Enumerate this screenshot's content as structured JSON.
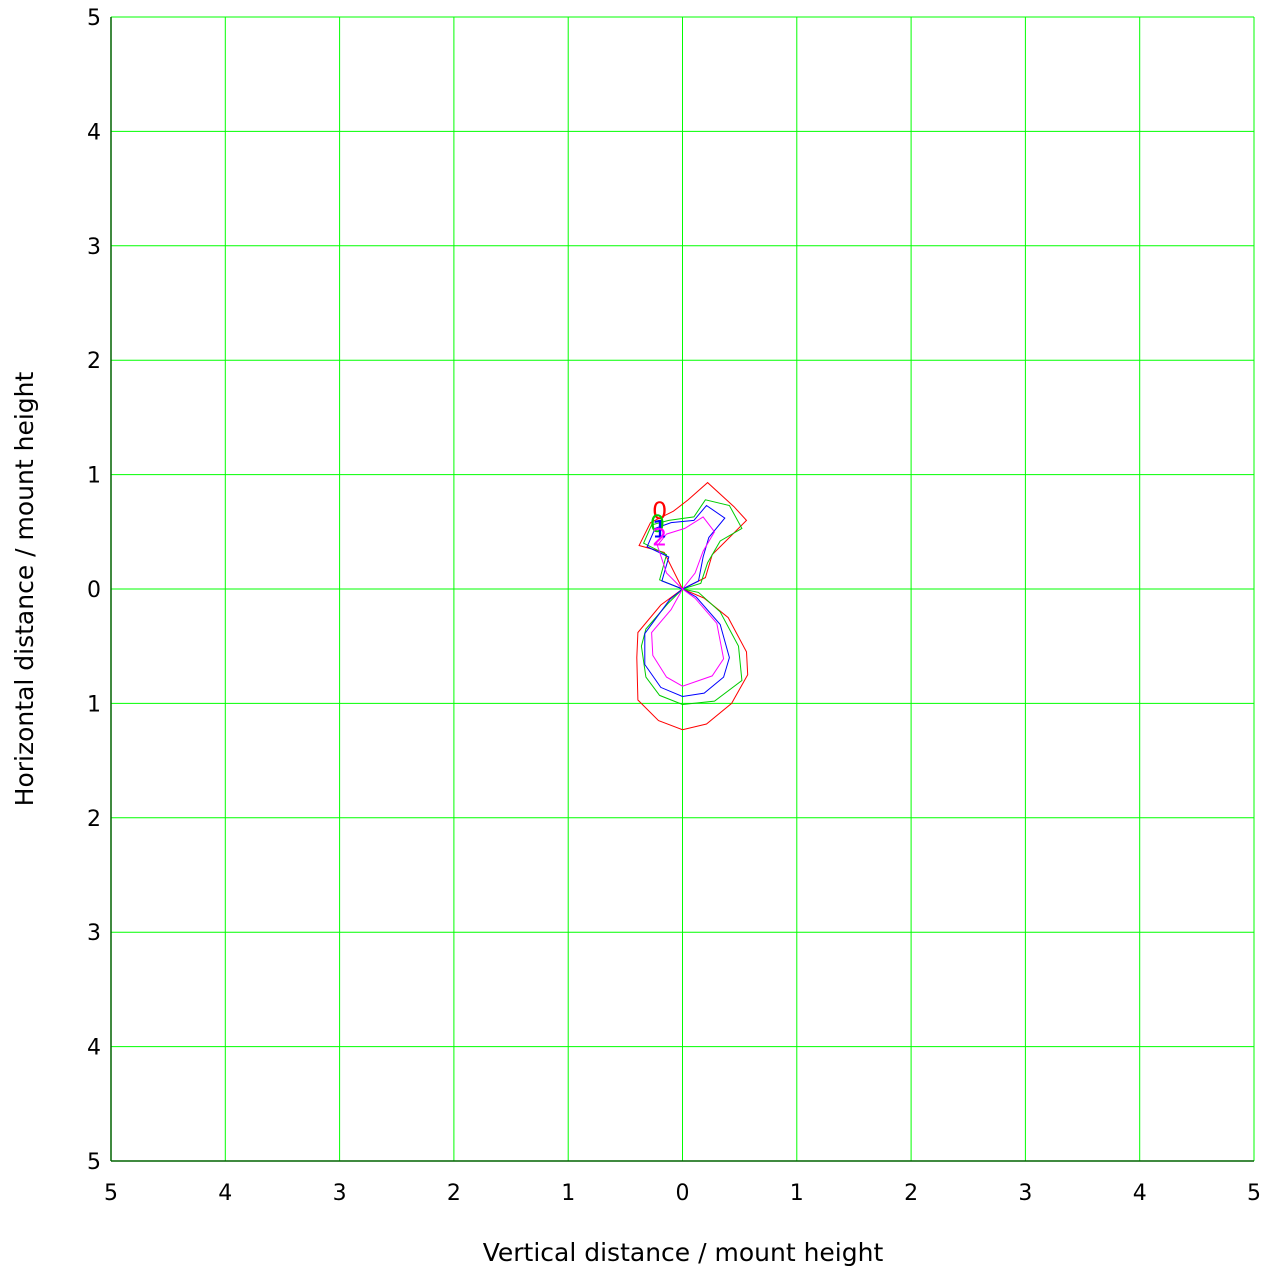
{
  "chart_data": {
    "type": "line",
    "xlabel": "Vertical distance / mount height",
    "ylabel": "Horizontal distance / mount height",
    "xlim": [
      -5,
      5
    ],
    "ylim": [
      -5,
      5
    ],
    "x_ticks": [
      {
        "value": -5,
        "label": "5"
      },
      {
        "value": -4,
        "label": "4"
      },
      {
        "value": -3,
        "label": "3"
      },
      {
        "value": -2,
        "label": "2"
      },
      {
        "value": -1,
        "label": "1"
      },
      {
        "value": 0,
        "label": "0"
      },
      {
        "value": 1,
        "label": "1"
      },
      {
        "value": 2,
        "label": "2"
      },
      {
        "value": 3,
        "label": "3"
      },
      {
        "value": 4,
        "label": "4"
      },
      {
        "value": 5,
        "label": "5"
      }
    ],
    "y_ticks": [
      {
        "value": 5,
        "label": "5"
      },
      {
        "value": 4,
        "label": "4"
      },
      {
        "value": 3,
        "label": "3"
      },
      {
        "value": 2,
        "label": "2"
      },
      {
        "value": 1,
        "label": "1"
      },
      {
        "value": 0,
        "label": "0"
      },
      {
        "value": -1,
        "label": "1"
      },
      {
        "value": -2,
        "label": "2"
      },
      {
        "value": -3,
        "label": "3"
      },
      {
        "value": -4,
        "label": "4"
      },
      {
        "value": -5,
        "label": "5"
      }
    ],
    "grid": true,
    "grid_color": "#00ff00",
    "axis_color": "#006400",
    "series": [
      {
        "label": "0",
        "color": "#ff0000",
        "label_at": [
          -0.2,
          0.68
        ],
        "points": [
          [
            0,
            0
          ],
          [
            -0.16,
            0.32
          ],
          [
            -0.38,
            0.38
          ],
          [
            -0.28,
            0.58
          ],
          [
            -0.08,
            0.68
          ],
          [
            0.05,
            0.78
          ],
          [
            0.22,
            0.93
          ],
          [
            0.45,
            0.72
          ],
          [
            0.56,
            0.6
          ],
          [
            0.38,
            0.42
          ],
          [
            0.26,
            0.3
          ],
          [
            0.2,
            0.1
          ],
          [
            0,
            0
          ],
          [
            0.19,
            -0.08
          ],
          [
            0.4,
            -0.25
          ],
          [
            0.56,
            -0.55
          ],
          [
            0.57,
            -0.75
          ],
          [
            0.43,
            -1.0
          ],
          [
            0.21,
            -1.18
          ],
          [
            0.0,
            -1.23
          ],
          [
            -0.21,
            -1.15
          ],
          [
            -0.39,
            -0.97
          ],
          [
            -0.4,
            -0.6
          ],
          [
            -0.39,
            -0.38
          ],
          [
            -0.19,
            -0.14
          ],
          [
            0,
            0
          ]
        ]
      },
      {
        "label": "0",
        "color": "#00cc00",
        "label_at": [
          -0.22,
          0.57
        ],
        "points": [
          [
            0,
            0
          ],
          [
            -0.2,
            0.08
          ],
          [
            -0.14,
            0.3
          ],
          [
            -0.34,
            0.4
          ],
          [
            -0.27,
            0.56
          ],
          [
            -0.12,
            0.6
          ],
          [
            0.1,
            0.63
          ],
          [
            0.2,
            0.78
          ],
          [
            0.41,
            0.73
          ],
          [
            0.52,
            0.53
          ],
          [
            0.33,
            0.42
          ],
          [
            0.22,
            0.23
          ],
          [
            0.16,
            0.05
          ],
          [
            0,
            0
          ],
          [
            0.14,
            -0.03
          ],
          [
            0.33,
            -0.2
          ],
          [
            0.49,
            -0.5
          ],
          [
            0.52,
            -0.8
          ],
          [
            0.28,
            -0.98
          ],
          [
            0.0,
            -1.01
          ],
          [
            -0.2,
            -0.93
          ],
          [
            -0.32,
            -0.77
          ],
          [
            -0.36,
            -0.5
          ],
          [
            -0.32,
            -0.35
          ],
          [
            -0.13,
            -0.13
          ],
          [
            0,
            0
          ]
        ]
      },
      {
        "label": "1",
        "color": "#0000ff",
        "label_at": [
          -0.2,
          0.52
        ],
        "points": [
          [
            0,
            0
          ],
          [
            -0.18,
            0.07
          ],
          [
            -0.12,
            0.28
          ],
          [
            -0.31,
            0.37
          ],
          [
            -0.24,
            0.53
          ],
          [
            -0.1,
            0.58
          ],
          [
            0.1,
            0.6
          ],
          [
            0.21,
            0.73
          ],
          [
            0.37,
            0.62
          ],
          [
            0.23,
            0.45
          ],
          [
            0.18,
            0.28
          ],
          [
            0.14,
            0.07
          ],
          [
            0,
            0
          ],
          [
            0.12,
            -0.07
          ],
          [
            0.33,
            -0.31
          ],
          [
            0.41,
            -0.6
          ],
          [
            0.36,
            -0.77
          ],
          [
            0.19,
            -0.91
          ],
          [
            0.0,
            -0.94
          ],
          [
            -0.19,
            -0.86
          ],
          [
            -0.33,
            -0.66
          ],
          [
            -0.33,
            -0.39
          ],
          [
            -0.11,
            -0.09
          ],
          [
            0,
            0
          ]
        ]
      },
      {
        "label": "2",
        "color": "#ff00ff",
        "label_at": [
          -0.2,
          0.45
        ],
        "points": [
          [
            0,
            0
          ],
          [
            -0.14,
            0.14
          ],
          [
            -0.22,
            0.38
          ],
          [
            -0.14,
            0.48
          ],
          [
            0.02,
            0.53
          ],
          [
            0.18,
            0.63
          ],
          [
            0.28,
            0.5
          ],
          [
            0.18,
            0.33
          ],
          [
            0.11,
            0.14
          ],
          [
            0,
            0
          ],
          [
            0.11,
            -0.08
          ],
          [
            0.3,
            -0.3
          ],
          [
            0.36,
            -0.61
          ],
          [
            0.26,
            -0.76
          ],
          [
            0.0,
            -0.85
          ],
          [
            -0.14,
            -0.77
          ],
          [
            -0.26,
            -0.58
          ],
          [
            -0.27,
            -0.38
          ],
          [
            -0.1,
            -0.18
          ],
          [
            0,
            0
          ]
        ]
      }
    ]
  }
}
